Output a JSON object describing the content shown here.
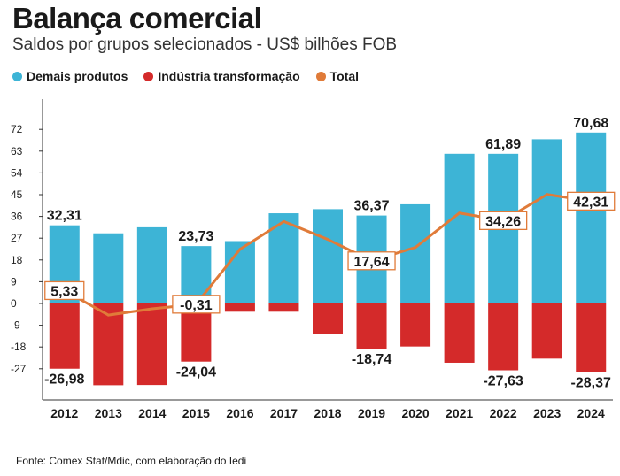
{
  "header": {
    "title": "Balança comercial",
    "subtitle": "Saldos por grupos selecionados - US$ bilhões FOB"
  },
  "legend": [
    {
      "label": "Demais produtos",
      "color": "#3db4d6"
    },
    {
      "label": "Indústria transformação",
      "color": "#d42a2a"
    },
    {
      "label": "Total",
      "color": "#e07b39"
    }
  ],
  "source": "Fonte: Comex Stat/Mdic, com elaboração do Iedi",
  "chart_data": {
    "type": "bar",
    "categories": [
      "2012",
      "2013",
      "2014",
      "2015",
      "2016",
      "2017",
      "2018",
      "2019",
      "2020",
      "2021",
      "2022",
      "2023",
      "2024"
    ],
    "series": [
      {
        "name": "Demais produtos",
        "type": "bar",
        "color": "#3db4d6",
        "values": [
          32.31,
          29.0,
          31.5,
          23.73,
          25.8,
          37.3,
          39.0,
          36.37,
          41.0,
          61.9,
          61.89,
          67.9,
          70.68
        ]
      },
      {
        "name": "Indústria transformação",
        "type": "bar",
        "color": "#d42a2a",
        "values": [
          -26.98,
          -33.8,
          -33.7,
          -24.04,
          -3.4,
          -3.4,
          -12.5,
          -18.74,
          -17.8,
          -24.5,
          -27.63,
          -22.8,
          -28.37
        ]
      },
      {
        "name": "Total",
        "type": "line",
        "color": "#e07b39",
        "values": [
          5.33,
          -4.8,
          -2.2,
          -0.31,
          22.4,
          33.9,
          26.5,
          17.64,
          23.2,
          37.4,
          34.26,
          45.1,
          42.31
        ]
      }
    ],
    "yticks": [
      72,
      63,
      54,
      45,
      36,
      27,
      18,
      9,
      0,
      -9,
      -18,
      -27
    ],
    "ylim": [
      -36,
      75
    ],
    "labels": [
      {
        "series": 0,
        "index": 0,
        "text": "32,31",
        "boxed": false
      },
      {
        "series": 1,
        "index": 0,
        "text": "-26,98",
        "boxed": false
      },
      {
        "series": 2,
        "index": 0,
        "text": "5,33",
        "boxed": true
      },
      {
        "series": 0,
        "index": 3,
        "text": "23,73",
        "boxed": false
      },
      {
        "series": 1,
        "index": 3,
        "text": "-24,04",
        "boxed": false
      },
      {
        "series": 2,
        "index": 3,
        "text": "-0,31",
        "boxed": true
      },
      {
        "series": 0,
        "index": 7,
        "text": "36,37",
        "boxed": false
      },
      {
        "series": 1,
        "index": 7,
        "text": "-18,74",
        "boxed": false
      },
      {
        "series": 2,
        "index": 7,
        "text": "17,64",
        "boxed": true
      },
      {
        "series": 0,
        "index": 10,
        "text": "61,89",
        "boxed": false
      },
      {
        "series": 1,
        "index": 10,
        "text": "-27,63",
        "boxed": false
      },
      {
        "series": 2,
        "index": 10,
        "text": "34,26",
        "boxed": true
      },
      {
        "series": 0,
        "index": 12,
        "text": "70,68",
        "boxed": false
      },
      {
        "series": 1,
        "index": 12,
        "text": "-28,37",
        "boxed": false
      },
      {
        "series": 2,
        "index": 12,
        "text": "42,31",
        "boxed": true
      }
    ],
    "grid": false,
    "legend_position": "top-left"
  }
}
